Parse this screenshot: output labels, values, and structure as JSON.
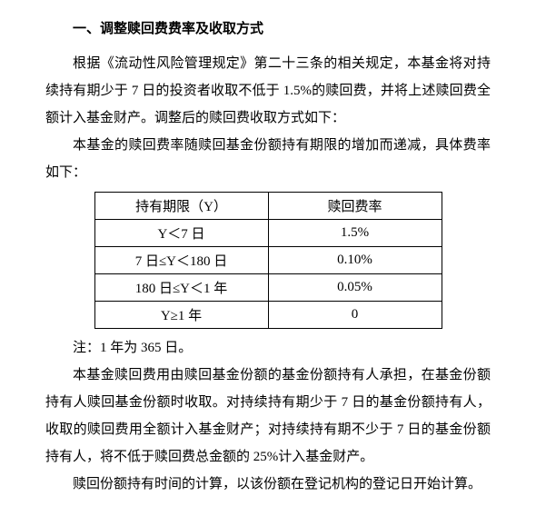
{
  "heading": "一、调整赎回费费率及收取方式",
  "para1": "根据《流动性风险管理规定》第二十三条的相关规定，本基金将对持续持有期少于 7 日的投资者收取不低于 1.5%的赎回费，并将上述赎回费全额计入基金财产。调整后的赎回费收取方式如下：",
  "para2": "本基金的赎回费率随赎回基金份额持有期限的增加而递减，具体费率如下：",
  "table": {
    "header": {
      "c1": "持有期限（Y）",
      "c2": "赎回费率"
    },
    "rows": [
      {
        "c1": "Y＜7 日",
        "c2": "1.5%"
      },
      {
        "c1": "7 日≤Y＜180 日",
        "c2": "0.10%"
      },
      {
        "c1": "180 日≤Y＜1 年",
        "c2": "0.05%"
      },
      {
        "c1": "Y≥1 年",
        "c2": "0"
      }
    ]
  },
  "note": "注：1 年为 365 日。",
  "para3": "本基金赎回费用由赎回基金份额的基金份额持有人承担，在基金份额持有人赎回基金份额时收取。对持续持有期少于 7 日的基金份额持有人，收取的赎回费用全额计入基金财产；对持续持有期不少于 7 日的基金份额持有人，将不低于赎回费总金额的 25%计入基金财产。",
  "para4": "赎回份额持有时间的计算，以该份额在登记机构的登记日开始计算。"
}
